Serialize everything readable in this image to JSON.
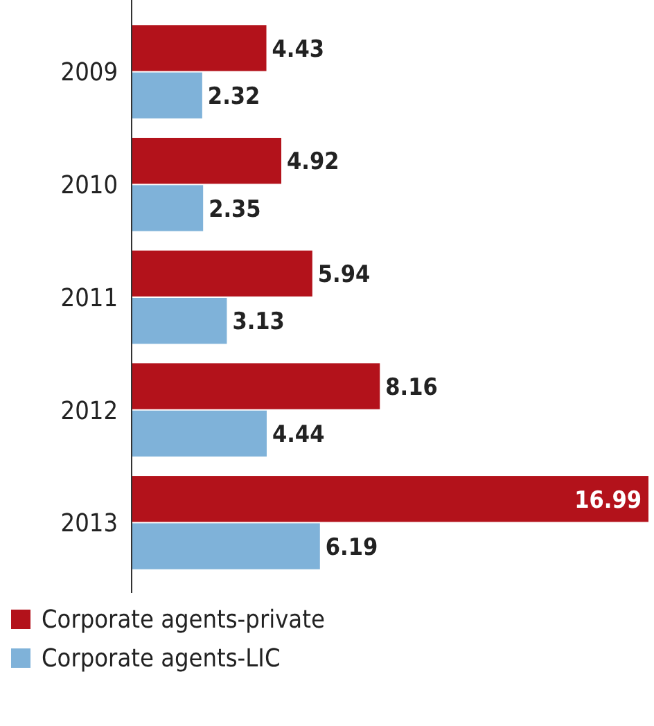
{
  "chart_data": {
    "type": "bar",
    "orientation": "horizontal",
    "categories": [
      "2009",
      "2010",
      "2011",
      "2012",
      "2013"
    ],
    "series": [
      {
        "name": "Corporate agents-private",
        "color": "#b3121b",
        "values": [
          4.43,
          4.92,
          5.94,
          8.16,
          16.99
        ]
      },
      {
        "name": "Corporate agents-LIC",
        "color": "#7fb2d9",
        "values": [
          2.32,
          2.35,
          3.13,
          4.44,
          6.19
        ]
      }
    ],
    "data_labels": true,
    "legend": "bottom left"
  }
}
